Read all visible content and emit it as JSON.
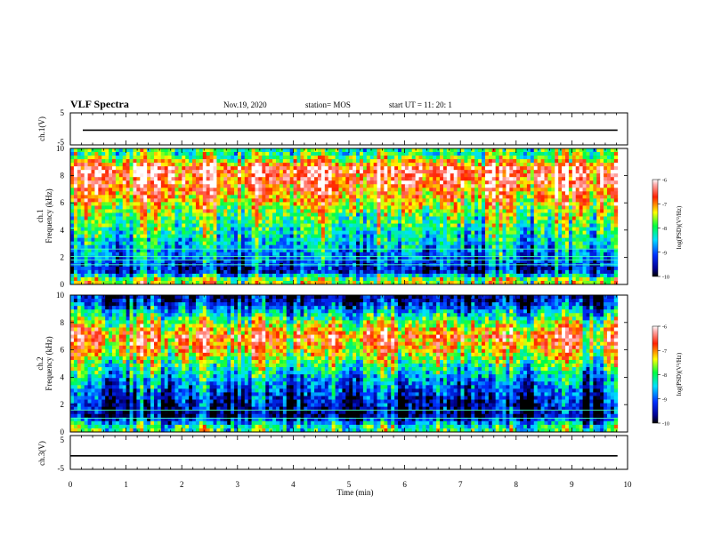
{
  "header": {
    "title": "VLF Spectra",
    "date": "Nov.19, 2020",
    "station": "station= MOS",
    "start": "start  UT =   11: 20: 1"
  },
  "chart_data": [
    {
      "type": "line",
      "panel": "ch.1(V)",
      "ylabel": "ch.1(V)",
      "ylim": [
        -5,
        5
      ],
      "yticks": [
        "5",
        "-5"
      ],
      "x_minutes": [
        0,
        9.82
      ],
      "y_volts": [
        -0.4,
        -0.4
      ]
    },
    {
      "type": "heatmap",
      "panel": "ch.1 spectrogram",
      "ylabel": "ch.1\nFrequency  (kHz)",
      "ylim": [
        0,
        10
      ],
      "yticks": [
        "0",
        "2",
        "4",
        "6",
        "8",
        "10"
      ],
      "xlim": [
        0,
        10
      ],
      "data_xmax_min": 9.82,
      "colorbar": {
        "label": "log(PSD)(V²/Hz)",
        "range": [
          -10,
          -6
        ],
        "ticks": [
          "-6",
          "-7",
          "-8",
          "-9",
          "-10"
        ]
      },
      "intensity_profile_khz": [
        {
          "f": 0.3,
          "logpsd": -7.5
        },
        {
          "f": 1.0,
          "logpsd": -9.5
        },
        {
          "f": 1.8,
          "logpsd": -9.0
        },
        {
          "f": 3.0,
          "logpsd": -8.5
        },
        {
          "f": 5.0,
          "logpsd": -7.8
        },
        {
          "f": 7.0,
          "logpsd": -6.8
        },
        {
          "f": 8.5,
          "logpsd": -6.4
        },
        {
          "f": 9.5,
          "logpsd": -8.0
        }
      ],
      "horizontal_lines_khz": [
        1.45,
        1.8,
        2.05,
        2.6
      ]
    },
    {
      "type": "heatmap",
      "panel": "ch.2 spectrogram",
      "ylabel": "ch.2\nFrequency  (kHz)",
      "ylim": [
        0,
        10
      ],
      "yticks": [
        "0",
        "2",
        "4",
        "6",
        "8",
        "10"
      ],
      "xlim": [
        0,
        10
      ],
      "data_xmax_min": 9.82,
      "colorbar": {
        "label": "log(PSD)(V²/Hz)",
        "range": [
          -10,
          -6
        ],
        "ticks": [
          "-6",
          "-7",
          "-8",
          "-9",
          "-10"
        ]
      },
      "intensity_profile_khz": [
        {
          "f": 0.3,
          "logpsd": -8.0
        },
        {
          "f": 1.2,
          "logpsd": -9.7
        },
        {
          "f": 2.5,
          "logpsd": -9.3
        },
        {
          "f": 4.0,
          "logpsd": -8.6
        },
        {
          "f": 6.0,
          "logpsd": -7.2
        },
        {
          "f": 7.0,
          "logpsd": -6.7
        },
        {
          "f": 8.5,
          "logpsd": -8.2
        },
        {
          "f": 9.7,
          "logpsd": -9.6
        }
      ],
      "horizontal_lines_khz": [
        1.0,
        1.6
      ]
    },
    {
      "type": "line",
      "panel": "ch.3(V)",
      "ylabel": "ch.3(V)",
      "ylim": [
        -5,
        5
      ],
      "yticks": [
        "5",
        "-5"
      ],
      "x_minutes": [
        0,
        9.82
      ],
      "y_volts": [
        -1.0,
        -1.0
      ]
    }
  ],
  "xaxis": {
    "label": "Time  (min)",
    "ticks": [
      "0",
      "1",
      "2",
      "3",
      "4",
      "5",
      "6",
      "7",
      "8",
      "9",
      "10"
    ]
  },
  "colors": {
    "cmap": [
      "#000080",
      "#0000ff",
      "#00ffff",
      "#00ff00",
      "#ffff00",
      "#ff8000",
      "#ff0000",
      "#ffffff"
    ]
  }
}
